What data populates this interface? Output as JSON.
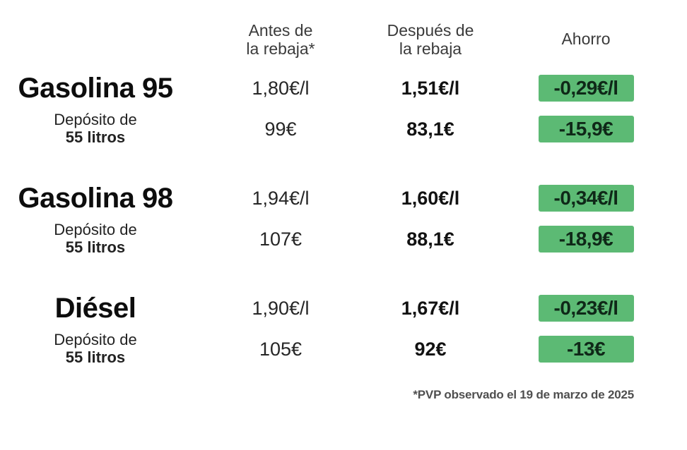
{
  "colors": {
    "badge_bg": "#5cba74",
    "badge_text": "#0f2818"
  },
  "headers": {
    "before_line1": "Antes de",
    "before_line2": "la rebaja*",
    "after_line1": "Después de",
    "after_line2": "la rebaja",
    "savings": "Ahorro"
  },
  "rows": [
    {
      "fuel": "Gasolina 95",
      "deposit_line1": "Depósito de",
      "deposit_line2": "55 litros",
      "before_per_liter": "1,80€/l",
      "after_per_liter": "1,51€/l",
      "savings_per_liter": "-0,29€/l",
      "before_deposit": "99€",
      "after_deposit": "83,1€",
      "savings_deposit": "-15,9€"
    },
    {
      "fuel": "Gasolina 98",
      "deposit_line1": "Depósito de",
      "deposit_line2": "55 litros",
      "before_per_liter": "1,94€/l",
      "after_per_liter": "1,60€/l",
      "savings_per_liter": "-0,34€/l",
      "before_deposit": "107€",
      "after_deposit": "88,1€",
      "savings_deposit": "-18,9€"
    },
    {
      "fuel": "Diésel",
      "deposit_line1": "Depósito de",
      "deposit_line2": "55 litros",
      "before_per_liter": "1,90€/l",
      "after_per_liter": "1,67€/l",
      "savings_per_liter": "-0,23€/l",
      "before_deposit": "105€",
      "after_deposit": "92€",
      "savings_deposit": "-13€"
    }
  ],
  "footnote": "*PVP observado el 19 de marzo de 2025",
  "chart_data": {
    "type": "table",
    "columns": [
      "",
      "Antes de la rebaja*",
      "Después de la rebaja",
      "Ahorro"
    ],
    "rows": [
      [
        "Gasolina 95",
        "1,80€/l",
        "1,51€/l",
        "-0,29€/l"
      ],
      [
        "Gasolina 95 (Depósito de 55 litros)",
        "99€",
        "83,1€",
        "-15,9€"
      ],
      [
        "Gasolina 98",
        "1,94€/l",
        "1,60€/l",
        "-0,34€/l"
      ],
      [
        "Gasolina 98 (Depósito de 55 litros)",
        "107€",
        "88,1€",
        "-18,9€"
      ],
      [
        "Diésel",
        "1,90€/l",
        "1,67€/l",
        "-0,23€/l"
      ],
      [
        "Diésel (Depósito de 55 litros)",
        "105€",
        "92€",
        "-13€"
      ]
    ],
    "footnote": "*PVP observado el 19 de marzo de 2025",
    "layout": {
      "grid": false,
      "legend": "none",
      "savings_highlight_color": "#5cba74"
    }
  }
}
